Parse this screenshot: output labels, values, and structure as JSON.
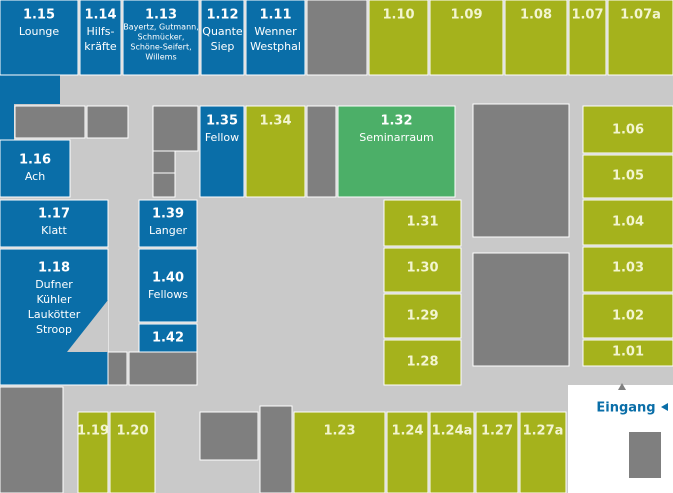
{
  "rooms": [
    {
      "number": "1.15",
      "lines": [
        "Lounge"
      ]
    },
    {
      "number": "1.14",
      "lines": [
        "Hilfs-",
        "kräfte"
      ]
    },
    {
      "number": "1.13",
      "lines": [
        "Bayertz, Gutmann,",
        "Schmücker,",
        "Schöne-Seifert,",
        "Willems"
      ]
    },
    {
      "number": "1.12",
      "lines": [
        "Quante",
        "Siep"
      ]
    },
    {
      "number": "1.11",
      "lines": [
        "Wenner",
        "Westphal"
      ]
    },
    {
      "number": "1.10"
    },
    {
      "number": "1.09"
    },
    {
      "number": "1.08"
    },
    {
      "number": "1.07"
    },
    {
      "number": "1.07a"
    },
    {
      "number": "1.16",
      "lines": [
        "Ach"
      ]
    },
    {
      "number": "1.17",
      "lines": [
        "Klatt"
      ]
    },
    {
      "number": "1.18",
      "lines": [
        "Dufner",
        "Kühler",
        "Laukötter",
        "Stroop"
      ]
    },
    {
      "number": "1.39",
      "lines": [
        "Langer"
      ]
    },
    {
      "number": "1.40",
      "lines": [
        "Fellows"
      ]
    },
    {
      "number": "1.42"
    },
    {
      "number": "1.35",
      "lines": [
        "Fellow"
      ]
    },
    {
      "number": "1.34"
    },
    {
      "number": "1.32",
      "lines": [
        "Seminarraum"
      ]
    },
    {
      "number": "1.31"
    },
    {
      "number": "1.30"
    },
    {
      "number": "1.29"
    },
    {
      "number": "1.28"
    },
    {
      "number": "1.06"
    },
    {
      "number": "1.05"
    },
    {
      "number": "1.04"
    },
    {
      "number": "1.03"
    },
    {
      "number": "1.02"
    },
    {
      "number": "1.01"
    },
    {
      "number": "1.19"
    },
    {
      "number": "1.20"
    },
    {
      "number": "1.23"
    },
    {
      "number": "1.24"
    },
    {
      "number": "1.24a"
    },
    {
      "number": "1.27"
    },
    {
      "number": "1.27a"
    }
  ],
  "entrance": "Eingang"
}
